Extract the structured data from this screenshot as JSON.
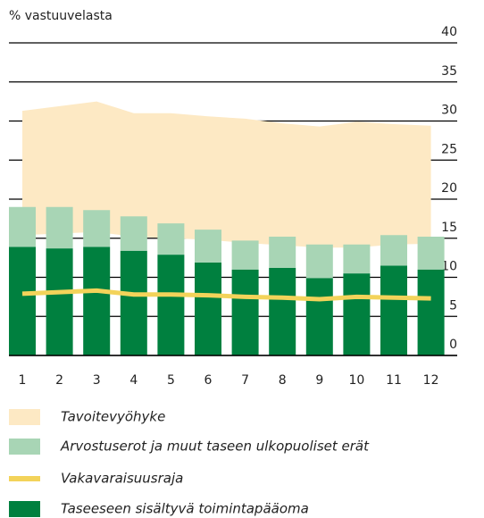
{
  "chart_data": {
    "type": "combo",
    "subtitle": "% vastuuvelasta",
    "categories": [
      "1",
      "2",
      "3",
      "4",
      "5",
      "6",
      "7",
      "8",
      "9",
      "10",
      "11",
      "12"
    ],
    "ylim": [
      0,
      40
    ],
    "yticks": [
      0,
      5,
      10,
      15,
      20,
      25,
      30,
      35,
      40
    ],
    "grid": true,
    "series": [
      {
        "name": "Tavoitevyöhyke",
        "type": "band",
        "color": "#fde9c4",
        "low": [
          15.4,
          15.6,
          15.8,
          15.2,
          15.0,
          14.8,
          14.4,
          14.1,
          13.8,
          13.8,
          14.2,
          14.3
        ],
        "high": [
          31.3,
          31.9,
          32.5,
          31.0,
          31.0,
          30.6,
          30.3,
          29.7,
          29.3,
          29.9,
          29.6,
          29.4
        ]
      },
      {
        "name": "Arvostuserot ja muut taseen ulkopuoliset erät",
        "type": "bar",
        "stack": 1,
        "color": "#a8d5b5",
        "values": [
          5.1,
          5.3,
          4.7,
          4.4,
          4.0,
          4.2,
          3.7,
          4.0,
          4.3,
          3.7,
          3.9,
          4.2
        ]
      },
      {
        "name": "Vakavaraisuusraja",
        "type": "line",
        "color": "#f3d35a",
        "values": [
          7.9,
          8.1,
          8.3,
          7.8,
          7.8,
          7.7,
          7.5,
          7.4,
          7.2,
          7.5,
          7.4,
          7.3
        ]
      },
      {
        "name": "Taseeseen sisältyvä toimintapääoma",
        "type": "bar",
        "stack": 0,
        "color": "#00803f",
        "values": [
          13.9,
          13.7,
          13.9,
          13.4,
          12.9,
          11.9,
          11.0,
          11.2,
          9.9,
          10.5,
          11.5,
          11.0
        ]
      }
    ]
  }
}
